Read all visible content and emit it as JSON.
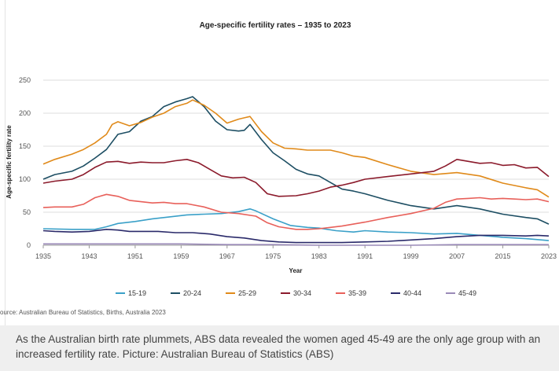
{
  "source": "ource: Australian Bureau of Statistics, Births, Australia 2023",
  "caption": "As the Australian birth rate plummets, ABS data revealed the women aged 45-49 are the only age group with an increased fertility rate. Picture: Australian Bureau of Statistics (ABS)",
  "chart_data": {
    "type": "line",
    "title": "Age-specific fertility rates – 1935 to 2023",
    "xlabel": "Year",
    "ylabel": "Age-specific fertility rate",
    "xlim": [
      1935,
      2023
    ],
    "ylim": [
      0,
      250
    ],
    "xticks": [
      1935,
      1943,
      1951,
      1959,
      1967,
      1975,
      1983,
      1991,
      1999,
      2007,
      2015,
      2023
    ],
    "yticks": [
      0,
      50,
      100,
      150,
      200,
      250
    ],
    "grid": "horizontal",
    "legend_position": "bottom",
    "series": [
      {
        "name": "15-19",
        "color": "#3aa0c8",
        "points": [
          [
            1935,
            25
          ],
          [
            1940,
            24
          ],
          [
            1944,
            24
          ],
          [
            1946,
            28
          ],
          [
            1948,
            33
          ],
          [
            1951,
            36
          ],
          [
            1954,
            40
          ],
          [
            1957,
            43
          ],
          [
            1960,
            46
          ],
          [
            1963,
            47
          ],
          [
            1966,
            48
          ],
          [
            1969,
            51
          ],
          [
            1971,
            55
          ],
          [
            1972,
            52
          ],
          [
            1975,
            40
          ],
          [
            1978,
            30
          ],
          [
            1981,
            27
          ],
          [
            1983,
            26
          ],
          [
            1986,
            22
          ],
          [
            1989,
            20
          ],
          [
            1991,
            22
          ],
          [
            1995,
            20
          ],
          [
            1999,
            19
          ],
          [
            2003,
            17
          ],
          [
            2007,
            18
          ],
          [
            2011,
            15
          ],
          [
            2015,
            12
          ],
          [
            2019,
            10
          ],
          [
            2023,
            7
          ]
        ]
      },
      {
        "name": "20-24",
        "color": "#1d4e63",
        "points": [
          [
            1935,
            100
          ],
          [
            1937,
            107
          ],
          [
            1940,
            112
          ],
          [
            1942,
            120
          ],
          [
            1944,
            132
          ],
          [
            1946,
            145
          ],
          [
            1948,
            168
          ],
          [
            1950,
            172
          ],
          [
            1952,
            188
          ],
          [
            1954,
            195
          ],
          [
            1956,
            210
          ],
          [
            1958,
            217
          ],
          [
            1960,
            222
          ],
          [
            1961,
            225
          ],
          [
            1963,
            210
          ],
          [
            1965,
            188
          ],
          [
            1967,
            175
          ],
          [
            1969,
            173
          ],
          [
            1970,
            174
          ],
          [
            1971,
            183
          ],
          [
            1973,
            160
          ],
          [
            1975,
            140
          ],
          [
            1977,
            128
          ],
          [
            1979,
            115
          ],
          [
            1981,
            108
          ],
          [
            1983,
            105
          ],
          [
            1985,
            95
          ],
          [
            1987,
            85
          ],
          [
            1989,
            82
          ],
          [
            1991,
            78
          ],
          [
            1995,
            68
          ],
          [
            1999,
            60
          ],
          [
            2003,
            55
          ],
          [
            2007,
            60
          ],
          [
            2011,
            55
          ],
          [
            2015,
            47
          ],
          [
            2019,
            42
          ],
          [
            2021,
            40
          ],
          [
            2023,
            32
          ]
        ]
      },
      {
        "name": "25-29",
        "color": "#e08a1a",
        "points": [
          [
            1935,
            123
          ],
          [
            1937,
            130
          ],
          [
            1940,
            138
          ],
          [
            1942,
            145
          ],
          [
            1944,
            155
          ],
          [
            1946,
            168
          ],
          [
            1947,
            183
          ],
          [
            1948,
            187
          ],
          [
            1950,
            181
          ],
          [
            1952,
            186
          ],
          [
            1954,
            194
          ],
          [
            1956,
            200
          ],
          [
            1958,
            210
          ],
          [
            1960,
            215
          ],
          [
            1961,
            220
          ],
          [
            1963,
            212
          ],
          [
            1965,
            200
          ],
          [
            1967,
            185
          ],
          [
            1969,
            191
          ],
          [
            1970,
            193
          ],
          [
            1971,
            195
          ],
          [
            1973,
            172
          ],
          [
            1975,
            155
          ],
          [
            1977,
            147
          ],
          [
            1979,
            146
          ],
          [
            1981,
            144
          ],
          [
            1983,
            144
          ],
          [
            1985,
            144
          ],
          [
            1987,
            140
          ],
          [
            1989,
            135
          ],
          [
            1991,
            133
          ],
          [
            1995,
            122
          ],
          [
            1999,
            112
          ],
          [
            2003,
            107
          ],
          [
            2007,
            110
          ],
          [
            2011,
            105
          ],
          [
            2015,
            94
          ],
          [
            2019,
            87
          ],
          [
            2021,
            84
          ],
          [
            2023,
            73
          ]
        ]
      },
      {
        "name": "30-34",
        "color": "#8b1a2b",
        "points": [
          [
            1935,
            94
          ],
          [
            1937,
            97
          ],
          [
            1940,
            100
          ],
          [
            1942,
            107
          ],
          [
            1944,
            118
          ],
          [
            1946,
            126
          ],
          [
            1948,
            127
          ],
          [
            1950,
            124
          ],
          [
            1952,
            126
          ],
          [
            1954,
            125
          ],
          [
            1956,
            125
          ],
          [
            1958,
            128
          ],
          [
            1960,
            130
          ],
          [
            1962,
            125
          ],
          [
            1964,
            115
          ],
          [
            1966,
            105
          ],
          [
            1968,
            102
          ],
          [
            1970,
            103
          ],
          [
            1972,
            95
          ],
          [
            1974,
            78
          ],
          [
            1976,
            74
          ],
          [
            1979,
            75
          ],
          [
            1981,
            78
          ],
          [
            1983,
            82
          ],
          [
            1985,
            88
          ],
          [
            1987,
            91
          ],
          [
            1989,
            95
          ],
          [
            1991,
            100
          ],
          [
            1995,
            104
          ],
          [
            1999,
            108
          ],
          [
            2003,
            112
          ],
          [
            2005,
            120
          ],
          [
            2007,
            130
          ],
          [
            2009,
            127
          ],
          [
            2011,
            124
          ],
          [
            2013,
            125
          ],
          [
            2015,
            121
          ],
          [
            2017,
            122
          ],
          [
            2019,
            117
          ],
          [
            2021,
            118
          ],
          [
            2023,
            104
          ]
        ]
      },
      {
        "name": "35-39",
        "color": "#e8605a",
        "points": [
          [
            1935,
            57
          ],
          [
            1937,
            58
          ],
          [
            1940,
            58
          ],
          [
            1942,
            62
          ],
          [
            1944,
            72
          ],
          [
            1946,
            77
          ],
          [
            1948,
            74
          ],
          [
            1950,
            68
          ],
          [
            1952,
            66
          ],
          [
            1954,
            64
          ],
          [
            1956,
            65
          ],
          [
            1958,
            63
          ],
          [
            1960,
            63
          ],
          [
            1963,
            58
          ],
          [
            1966,
            50
          ],
          [
            1969,
            48
          ],
          [
            1972,
            44
          ],
          [
            1974,
            34
          ],
          [
            1976,
            28
          ],
          [
            1979,
            24
          ],
          [
            1981,
            24
          ],
          [
            1983,
            25
          ],
          [
            1985,
            27
          ],
          [
            1987,
            29
          ],
          [
            1989,
            32
          ],
          [
            1991,
            35
          ],
          [
            1995,
            42
          ],
          [
            1999,
            48
          ],
          [
            2003,
            56
          ],
          [
            2005,
            65
          ],
          [
            2007,
            70
          ],
          [
            2009,
            71
          ],
          [
            2011,
            72
          ],
          [
            2013,
            70
          ],
          [
            2015,
            71
          ],
          [
            2017,
            70
          ],
          [
            2019,
            69
          ],
          [
            2021,
            70
          ],
          [
            2023,
            66
          ]
        ]
      },
      {
        "name": "40-44",
        "color": "#2a2a6a",
        "points": [
          [
            1935,
            22
          ],
          [
            1937,
            21
          ],
          [
            1940,
            20
          ],
          [
            1943,
            21
          ],
          [
            1946,
            24
          ],
          [
            1948,
            23
          ],
          [
            1950,
            21
          ],
          [
            1952,
            21
          ],
          [
            1955,
            21
          ],
          [
            1958,
            19
          ],
          [
            1961,
            19
          ],
          [
            1964,
            17
          ],
          [
            1967,
            13
          ],
          [
            1970,
            11
          ],
          [
            1973,
            7
          ],
          [
            1976,
            5
          ],
          [
            1979,
            4
          ],
          [
            1983,
            4
          ],
          [
            1987,
            4
          ],
          [
            1991,
            5
          ],
          [
            1995,
            6
          ],
          [
            1999,
            8
          ],
          [
            2003,
            10
          ],
          [
            2007,
            13
          ],
          [
            2011,
            15
          ],
          [
            2015,
            15
          ],
          [
            2019,
            14
          ],
          [
            2021,
            15
          ],
          [
            2023,
            14
          ]
        ]
      },
      {
        "name": "45-49",
        "color": "#9a8ab8",
        "points": [
          [
            1935,
            2
          ],
          [
            1943,
            2
          ],
          [
            1951,
            2
          ],
          [
            1959,
            2
          ],
          [
            1967,
            1
          ],
          [
            1975,
            1
          ],
          [
            1983,
            0
          ],
          [
            1991,
            0
          ],
          [
            1999,
            0
          ],
          [
            2007,
            1
          ],
          [
            2015,
            1
          ],
          [
            2023,
            1
          ]
        ]
      }
    ]
  }
}
